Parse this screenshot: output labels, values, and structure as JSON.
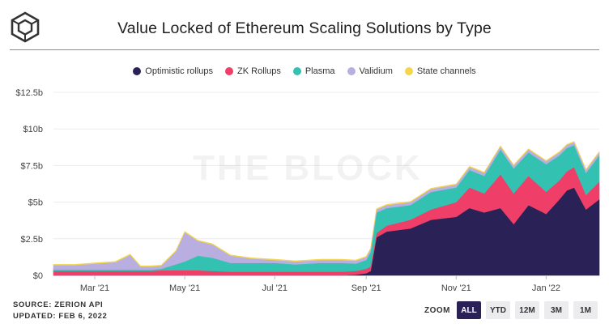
{
  "title": "Value Locked of Ethereum Scaling Solutions by Type",
  "watermark": "THE BLOCK",
  "footer": {
    "source": "SOURCE: ZERION API",
    "updated": "UPDATED: FEB 6, 2022"
  },
  "zoom": {
    "label": "ZOOM",
    "buttons": [
      "ALL",
      "YTD",
      "12M",
      "3M",
      "1M"
    ],
    "active": "ALL"
  },
  "colors": {
    "optimistic": "#2a2256",
    "zk": "#ef3e68",
    "plasma": "#33c2b1",
    "validium": "#b9aee0",
    "state": "#f3d54e",
    "accent": "#8e44ad"
  },
  "chart_data": {
    "type": "area",
    "stacked": true,
    "title": "Value Locked of Ethereum Scaling Solutions by Type",
    "y_unit": "USD billions",
    "ylim": [
      0,
      12.5
    ],
    "y_ticks": [
      "$0",
      "$2.5b",
      "$5b",
      "$7.5b",
      "$10b",
      "$12.5b"
    ],
    "y_tick_values": [
      0,
      2.5,
      5,
      7.5,
      10,
      12.5
    ],
    "x_ticks": [
      "Mar '21",
      "May '21",
      "Jul '21",
      "Sep '21",
      "Nov '21",
      "Jan '22"
    ],
    "x_tick_dates": [
      "2021-03-01",
      "2021-05-01",
      "2021-07-01",
      "2021-09-01",
      "2021-11-01",
      "2022-01-01"
    ],
    "legend_position": "top",
    "grid": "horizontal",
    "x": [
      "2021-02-01",
      "2021-02-15",
      "2021-03-01",
      "2021-03-15",
      "2021-03-25",
      "2021-04-01",
      "2021-04-08",
      "2021-04-15",
      "2021-04-25",
      "2021-05-01",
      "2021-05-10",
      "2021-05-20",
      "2021-06-01",
      "2021-06-15",
      "2021-07-01",
      "2021-07-15",
      "2021-08-01",
      "2021-08-15",
      "2021-08-25",
      "2021-09-01",
      "2021-09-04",
      "2021-09-08",
      "2021-09-15",
      "2021-10-01",
      "2021-10-15",
      "2021-11-01",
      "2021-11-10",
      "2021-11-20",
      "2021-12-01",
      "2021-12-10",
      "2021-12-20",
      "2022-01-01",
      "2022-01-10",
      "2022-01-15",
      "2022-01-20",
      "2022-01-28",
      "2022-02-06"
    ],
    "series": [
      {
        "name": "Optimistic rollups",
        "values": [
          0,
          0,
          0,
          0,
          0,
          0,
          0,
          0,
          0,
          0,
          0,
          0,
          0,
          0,
          0,
          0,
          0,
          0,
          0.05,
          0.15,
          0.3,
          2.6,
          3.0,
          3.2,
          3.8,
          4.0,
          4.6,
          4.3,
          4.6,
          3.5,
          4.8,
          4.2,
          5.2,
          5.8,
          6.0,
          4.5,
          5.2
        ]
      },
      {
        "name": "ZK Rollups",
        "values": [
          0.3,
          0.3,
          0.3,
          0.3,
          0.3,
          0.3,
          0.3,
          0.35,
          0.35,
          0.35,
          0.35,
          0.3,
          0.25,
          0.25,
          0.25,
          0.25,
          0.25,
          0.25,
          0.25,
          0.3,
          0.3,
          0.3,
          0.4,
          0.6,
          0.7,
          1.0,
          1.4,
          1.3,
          2.3,
          2.1,
          2.0,
          1.5,
          1.3,
          1.3,
          1.4,
          1.0,
          1.2
        ]
      },
      {
        "name": "Plasma",
        "values": [
          0.1,
          0.1,
          0.1,
          0.1,
          0.1,
          0.1,
          0.1,
          0.1,
          0.4,
          0.6,
          1.0,
          0.9,
          0.6,
          0.6,
          0.6,
          0.5,
          0.6,
          0.6,
          0.5,
          0.6,
          1.0,
          1.4,
          1.2,
          1.0,
          1.2,
          1.0,
          1.2,
          1.2,
          1.7,
          1.7,
          1.6,
          1.9,
          1.7,
          1.6,
          1.5,
          1.5,
          1.8
        ]
      },
      {
        "name": "Validium",
        "values": [
          0.3,
          0.3,
          0.4,
          0.5,
          1.0,
          0.2,
          0.2,
          0.2,
          0.9,
          2.0,
          1.0,
          0.9,
          0.5,
          0.3,
          0.2,
          0.2,
          0.2,
          0.2,
          0.2,
          0.2,
          0.2,
          0.2,
          0.2,
          0.2,
          0.2,
          0.2,
          0.2,
          0.2,
          0.2,
          0.2,
          0.2,
          0.2,
          0.2,
          0.2,
          0.2,
          0.2,
          0.2
        ]
      },
      {
        "name": "State channels",
        "values": [
          0.05,
          0.05,
          0.05,
          0.05,
          0.05,
          0.05,
          0.05,
          0.05,
          0.05,
          0.05,
          0.05,
          0.05,
          0.05,
          0.05,
          0.05,
          0.05,
          0.05,
          0.05,
          0.05,
          0.05,
          0.05,
          0.05,
          0.05,
          0.05,
          0.05,
          0.05,
          0.05,
          0.05,
          0.05,
          0.05,
          0.05,
          0.05,
          0.05,
          0.05,
          0.05,
          0.05,
          0.05
        ]
      }
    ]
  }
}
